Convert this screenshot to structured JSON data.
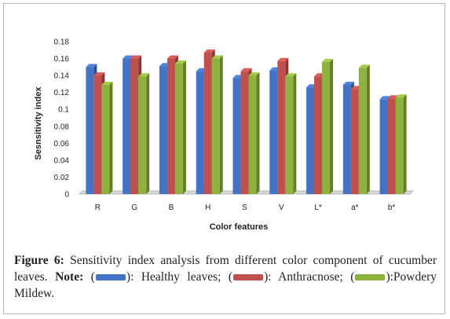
{
  "chart_data": {
    "type": "bar",
    "title": "",
    "xlabel": "Color features",
    "ylabel": "Sesnsitivity index",
    "ylim": [
      0,
      0.18
    ],
    "yticks": [
      "0",
      "0.02",
      "0.04",
      "0.06",
      "0.08",
      "0.1",
      "0.12",
      "0.14",
      "0.16",
      "0.18"
    ],
    "categories": [
      "R",
      "G",
      "B",
      "H",
      "S",
      "V",
      "L*",
      "a*",
      "b*"
    ],
    "grid": false,
    "style": "3d-bars",
    "series": [
      {
        "name": "Healthy leaves",
        "color": "#4472c4",
        "values": [
          0.15,
          0.16,
          0.151,
          0.145,
          0.137,
          0.146,
          0.126,
          0.129,
          0.112
        ]
      },
      {
        "name": "Anthracnose",
        "color": "#c0504d",
        "values": [
          0.14,
          0.16,
          0.16,
          0.167,
          0.145,
          0.157,
          0.139,
          0.124,
          0.113
        ]
      },
      {
        "name": "Powdery Mildew",
        "color": "#8db33e",
        "values": [
          0.129,
          0.139,
          0.154,
          0.16,
          0.14,
          0.139,
          0.156,
          0.149,
          0.114
        ]
      }
    ]
  },
  "caption": {
    "label": "Figure 6:",
    "text": "Sensitivity index analysis from different color component of cucumber leaves.",
    "note_label": "Note:",
    "open": "(",
    "legend1_text": "): Healthy leaves;",
    "legend2_text": "): Anthracnose;",
    "legend3_text": "):Powdery Mildew."
  }
}
